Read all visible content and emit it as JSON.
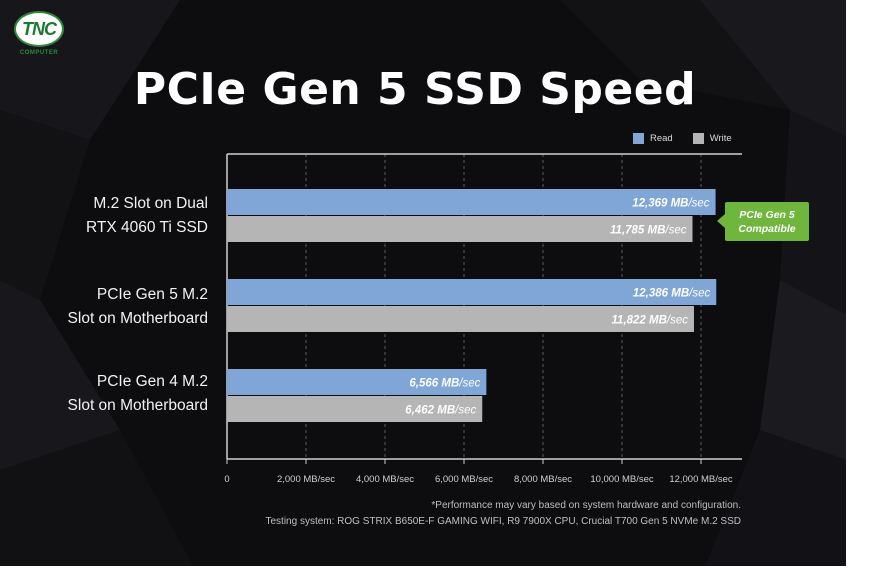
{
  "brand": {
    "logo_text": "TNC",
    "logo_subtext": "COMPUTER",
    "color": "#2a8a3a"
  },
  "title": "PCIe Gen 5 SSD Speed",
  "legend": [
    {
      "label": "Read",
      "color": "#7fa6d6"
    },
    {
      "label": "Write",
      "color": "#b5b5b5"
    }
  ],
  "callout": {
    "line1": "PCIe Gen 5",
    "line2": "Compatible",
    "color": "#6fb63c"
  },
  "footnotes": [
    "*Performance may vary based on system hardware and configuration.",
    "Testing system: ROG STRIX B650E-F GAMING WIFI, R9 7900X CPU, Crucial T700 Gen 5 NVMe M.2 SSD"
  ],
  "chart_data": {
    "type": "bar",
    "orientation": "horizontal",
    "categories": [
      [
        "M.2 Slot on Dual",
        "RTX 4060 Ti SSD"
      ],
      [
        "PCIe Gen 5 M.2",
        "Slot on Motherboard"
      ],
      [
        "PCIe Gen 4 M.2",
        "Slot on Motherboard"
      ]
    ],
    "series": [
      {
        "name": "Read",
        "values": [
          12369,
          12386,
          6566
        ],
        "color": "#7fa6d6",
        "data_labels": [
          "12,369 MB/sec",
          "12,386 MB/sec",
          "6,566 MB/sec"
        ]
      },
      {
        "name": "Write",
        "values": [
          11785,
          11822,
          6462
        ],
        "color": "#b5b5b5",
        "data_labels": [
          "11,785 MB/sec",
          "11,822 MB/sec",
          "6,462 MB/sec"
        ]
      }
    ],
    "xlim": [
      0,
      13000
    ],
    "x_ticks": [
      0,
      2000,
      4000,
      6000,
      8000,
      10000,
      12000
    ],
    "x_tick_labels": [
      "0",
      "2,000 MB/sec",
      "4,000 MB/sec",
      "6,000 MB/sec",
      "8,000 MB/sec",
      "10,000 MB/sec",
      "12,000 MB/sec"
    ],
    "grid": "vertical dashed",
    "legend_position": "top-right"
  }
}
